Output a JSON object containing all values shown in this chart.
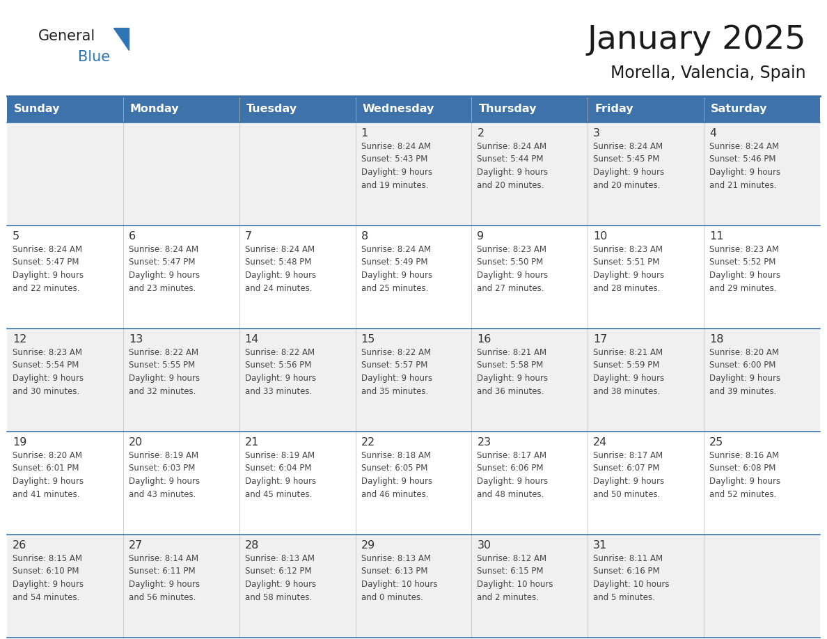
{
  "title": "January 2025",
  "subtitle": "Morella, Valencia, Spain",
  "days_of_week": [
    "Sunday",
    "Monday",
    "Tuesday",
    "Wednesday",
    "Thursday",
    "Friday",
    "Saturday"
  ],
  "header_bg": "#3D72AA",
  "header_text": "#FFFFFF",
  "cell_bg_light": "#F0F0F0",
  "cell_bg_white": "#FFFFFF",
  "border_color": "#3D72AA",
  "day_number_color": "#333333",
  "info_color": "#444444",
  "logo_general_color": "#222222",
  "logo_blue_color": "#2E75B6",
  "calendar_data": [
    [
      null,
      null,
      null,
      {
        "day": "1",
        "sunrise": "8:24 AM",
        "sunset": "5:43 PM",
        "dl1": "Daylight: 9 hours",
        "dl2": "and 19 minutes."
      },
      {
        "day": "2",
        "sunrise": "8:24 AM",
        "sunset": "5:44 PM",
        "dl1": "Daylight: 9 hours",
        "dl2": "and 20 minutes."
      },
      {
        "day": "3",
        "sunrise": "8:24 AM",
        "sunset": "5:45 PM",
        "dl1": "Daylight: 9 hours",
        "dl2": "and 20 minutes."
      },
      {
        "day": "4",
        "sunrise": "8:24 AM",
        "sunset": "5:46 PM",
        "dl1": "Daylight: 9 hours",
        "dl2": "and 21 minutes."
      }
    ],
    [
      {
        "day": "5",
        "sunrise": "8:24 AM",
        "sunset": "5:47 PM",
        "dl1": "Daylight: 9 hours",
        "dl2": "and 22 minutes."
      },
      {
        "day": "6",
        "sunrise": "8:24 AM",
        "sunset": "5:47 PM",
        "dl1": "Daylight: 9 hours",
        "dl2": "and 23 minutes."
      },
      {
        "day": "7",
        "sunrise": "8:24 AM",
        "sunset": "5:48 PM",
        "dl1": "Daylight: 9 hours",
        "dl2": "and 24 minutes."
      },
      {
        "day": "8",
        "sunrise": "8:24 AM",
        "sunset": "5:49 PM",
        "dl1": "Daylight: 9 hours",
        "dl2": "and 25 minutes."
      },
      {
        "day": "9",
        "sunrise": "8:23 AM",
        "sunset": "5:50 PM",
        "dl1": "Daylight: 9 hours",
        "dl2": "and 27 minutes."
      },
      {
        "day": "10",
        "sunrise": "8:23 AM",
        "sunset": "5:51 PM",
        "dl1": "Daylight: 9 hours",
        "dl2": "and 28 minutes."
      },
      {
        "day": "11",
        "sunrise": "8:23 AM",
        "sunset": "5:52 PM",
        "dl1": "Daylight: 9 hours",
        "dl2": "and 29 minutes."
      }
    ],
    [
      {
        "day": "12",
        "sunrise": "8:23 AM",
        "sunset": "5:54 PM",
        "dl1": "Daylight: 9 hours",
        "dl2": "and 30 minutes."
      },
      {
        "day": "13",
        "sunrise": "8:22 AM",
        "sunset": "5:55 PM",
        "dl1": "Daylight: 9 hours",
        "dl2": "and 32 minutes."
      },
      {
        "day": "14",
        "sunrise": "8:22 AM",
        "sunset": "5:56 PM",
        "dl1": "Daylight: 9 hours",
        "dl2": "and 33 minutes."
      },
      {
        "day": "15",
        "sunrise": "8:22 AM",
        "sunset": "5:57 PM",
        "dl1": "Daylight: 9 hours",
        "dl2": "and 35 minutes."
      },
      {
        "day": "16",
        "sunrise": "8:21 AM",
        "sunset": "5:58 PM",
        "dl1": "Daylight: 9 hours",
        "dl2": "and 36 minutes."
      },
      {
        "day": "17",
        "sunrise": "8:21 AM",
        "sunset": "5:59 PM",
        "dl1": "Daylight: 9 hours",
        "dl2": "and 38 minutes."
      },
      {
        "day": "18",
        "sunrise": "8:20 AM",
        "sunset": "6:00 PM",
        "dl1": "Daylight: 9 hours",
        "dl2": "and 39 minutes."
      }
    ],
    [
      {
        "day": "19",
        "sunrise": "8:20 AM",
        "sunset": "6:01 PM",
        "dl1": "Daylight: 9 hours",
        "dl2": "and 41 minutes."
      },
      {
        "day": "20",
        "sunrise": "8:19 AM",
        "sunset": "6:03 PM",
        "dl1": "Daylight: 9 hours",
        "dl2": "and 43 minutes."
      },
      {
        "day": "21",
        "sunrise": "8:19 AM",
        "sunset": "6:04 PM",
        "dl1": "Daylight: 9 hours",
        "dl2": "and 45 minutes."
      },
      {
        "day": "22",
        "sunrise": "8:18 AM",
        "sunset": "6:05 PM",
        "dl1": "Daylight: 9 hours",
        "dl2": "and 46 minutes."
      },
      {
        "day": "23",
        "sunrise": "8:17 AM",
        "sunset": "6:06 PM",
        "dl1": "Daylight: 9 hours",
        "dl2": "and 48 minutes."
      },
      {
        "day": "24",
        "sunrise": "8:17 AM",
        "sunset": "6:07 PM",
        "dl1": "Daylight: 9 hours",
        "dl2": "and 50 minutes."
      },
      {
        "day": "25",
        "sunrise": "8:16 AM",
        "sunset": "6:08 PM",
        "dl1": "Daylight: 9 hours",
        "dl2": "and 52 minutes."
      }
    ],
    [
      {
        "day": "26",
        "sunrise": "8:15 AM",
        "sunset": "6:10 PM",
        "dl1": "Daylight: 9 hours",
        "dl2": "and 54 minutes."
      },
      {
        "day": "27",
        "sunrise": "8:14 AM",
        "sunset": "6:11 PM",
        "dl1": "Daylight: 9 hours",
        "dl2": "and 56 minutes."
      },
      {
        "day": "28",
        "sunrise": "8:13 AM",
        "sunset": "6:12 PM",
        "dl1": "Daylight: 9 hours",
        "dl2": "and 58 minutes."
      },
      {
        "day": "29",
        "sunrise": "8:13 AM",
        "sunset": "6:13 PM",
        "dl1": "Daylight: 10 hours",
        "dl2": "and 0 minutes."
      },
      {
        "day": "30",
        "sunrise": "8:12 AM",
        "sunset": "6:15 PM",
        "dl1": "Daylight: 10 hours",
        "dl2": "and 2 minutes."
      },
      {
        "day": "31",
        "sunrise": "8:11 AM",
        "sunset": "6:16 PM",
        "dl1": "Daylight: 10 hours",
        "dl2": "and 5 minutes."
      },
      null
    ]
  ]
}
